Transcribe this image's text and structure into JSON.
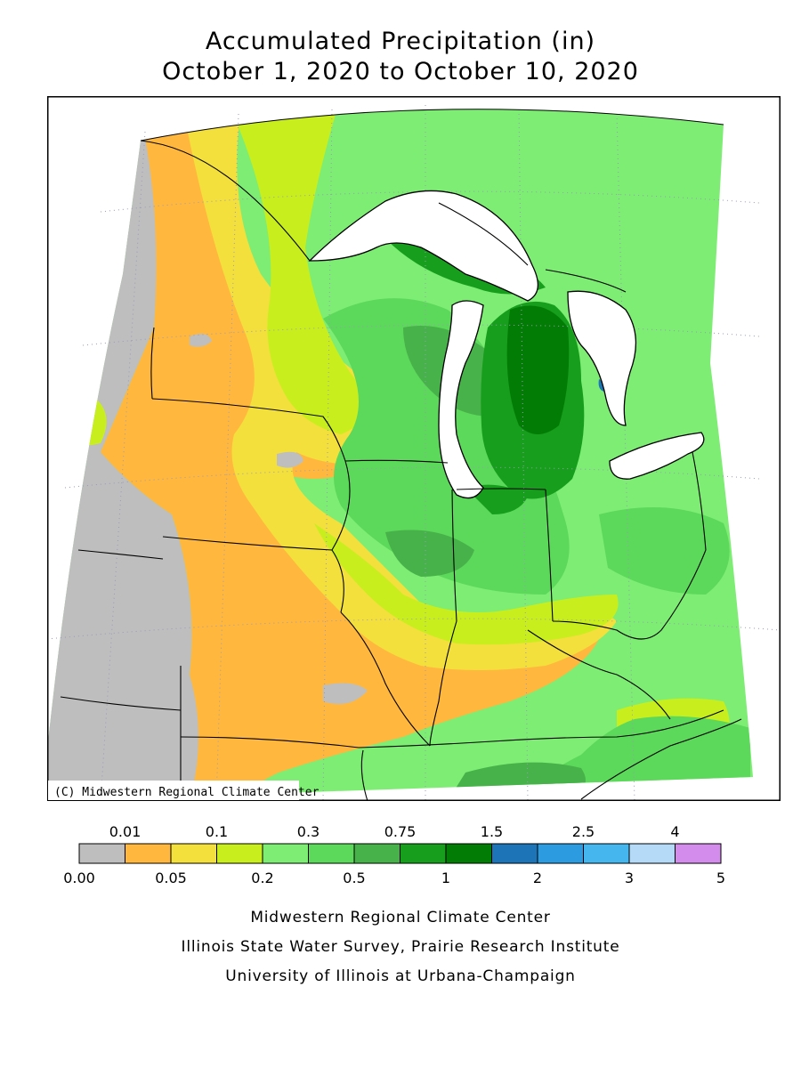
{
  "title": {
    "line1": "Accumulated Precipitation (in)",
    "line2": "October 1, 2020 to October 10, 2020"
  },
  "map": {
    "copyright": "(C) Midwestern Regional Climate Center"
  },
  "legend": {
    "top_labels": [
      "0.01",
      "0.1",
      "0.3",
      "0.75",
      "1.5",
      "2.5",
      "4"
    ],
    "bottom_labels": [
      "0.00",
      "0.05",
      "0.2",
      "0.5",
      "1",
      "2",
      "3",
      "5"
    ],
    "colors": [
      "#bebebe",
      "#ffb83d",
      "#f3e03c",
      "#c8ee1e",
      "#7ded73",
      "#5cd85a",
      "#47b24a",
      "#169e1c",
      "#037c05",
      "#1d74b6",
      "#2d9be0",
      "#45b6ee",
      "#b4daf8",
      "#d38ceb"
    ]
  },
  "credits": {
    "line1": "Midwestern Regional Climate Center",
    "line2": "Illinois State Water Survey, Prairie Research Institute",
    "line3": "University of Illinois at Urbana-Champaign"
  }
}
